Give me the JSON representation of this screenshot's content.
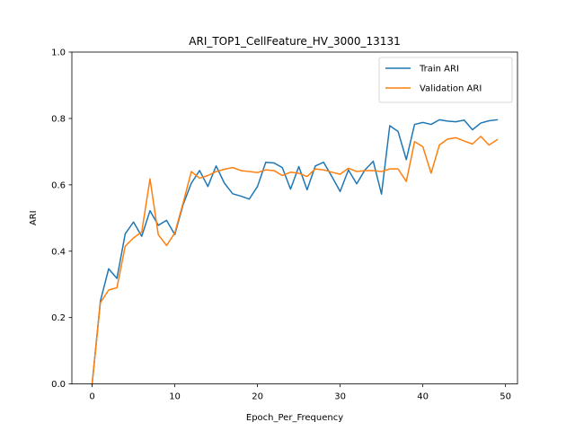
{
  "chart_data": {
    "type": "line",
    "title": "ARI_TOP1_CellFeature_HV_3000_13131",
    "xlabel": "Epoch_Per_Frequency",
    "ylabel": "ARI",
    "xlim": [
      -2.45,
      51.45
    ],
    "ylim": [
      0.0,
      1.0
    ],
    "xticks": [
      0,
      10,
      20,
      30,
      40,
      50
    ],
    "yticks": [
      0.0,
      0.2,
      0.4,
      0.6,
      0.8,
      1.0
    ],
    "xtick_labels": [
      "0",
      "10",
      "20",
      "30",
      "40",
      "50"
    ],
    "ytick_labels": [
      "0.0",
      "0.2",
      "0.4",
      "0.6",
      "0.8",
      "1.0"
    ],
    "grid": false,
    "legend_position": "top-right",
    "x": [
      0,
      1,
      2,
      3,
      4,
      5,
      6,
      7,
      8,
      9,
      10,
      11,
      12,
      13,
      14,
      15,
      16,
      17,
      18,
      19,
      20,
      21,
      22,
      23,
      24,
      25,
      26,
      27,
      28,
      29,
      30,
      31,
      32,
      33,
      34,
      35,
      36,
      37,
      38,
      39,
      40,
      41,
      42,
      43,
      44,
      45,
      46,
      47,
      48,
      49
    ],
    "series": [
      {
        "name": "Train ARI",
        "color": "#1f77b4",
        "values": [
          0.0,
          0.25,
          0.347,
          0.318,
          0.452,
          0.488,
          0.445,
          0.522,
          0.478,
          0.493,
          0.45,
          0.54,
          0.605,
          0.643,
          0.595,
          0.657,
          0.605,
          0.573,
          0.566,
          0.557,
          0.595,
          0.668,
          0.666,
          0.652,
          0.587,
          0.655,
          0.585,
          0.657,
          0.668,
          0.625,
          0.58,
          0.645,
          0.603,
          0.645,
          0.671,
          0.572,
          0.778,
          0.761,
          0.676,
          0.782,
          0.788,
          0.782,
          0.796,
          0.792,
          0.79,
          0.795,
          0.766,
          0.786,
          0.793,
          0.796
        ]
      },
      {
        "name": "Validation ARI",
        "color": "#ff7f0e",
        "values": [
          0.0,
          0.245,
          0.283,
          0.29,
          0.415,
          0.44,
          0.458,
          0.618,
          0.45,
          0.417,
          0.455,
          0.545,
          0.64,
          0.62,
          0.628,
          0.64,
          0.647,
          0.652,
          0.643,
          0.64,
          0.637,
          0.645,
          0.643,
          0.628,
          0.638,
          0.635,
          0.625,
          0.648,
          0.645,
          0.638,
          0.632,
          0.65,
          0.64,
          0.643,
          0.643,
          0.64,
          0.648,
          0.648,
          0.61,
          0.73,
          0.715,
          0.635,
          0.72,
          0.738,
          0.742,
          0.732,
          0.723,
          0.746,
          0.72,
          0.736
        ]
      }
    ]
  }
}
